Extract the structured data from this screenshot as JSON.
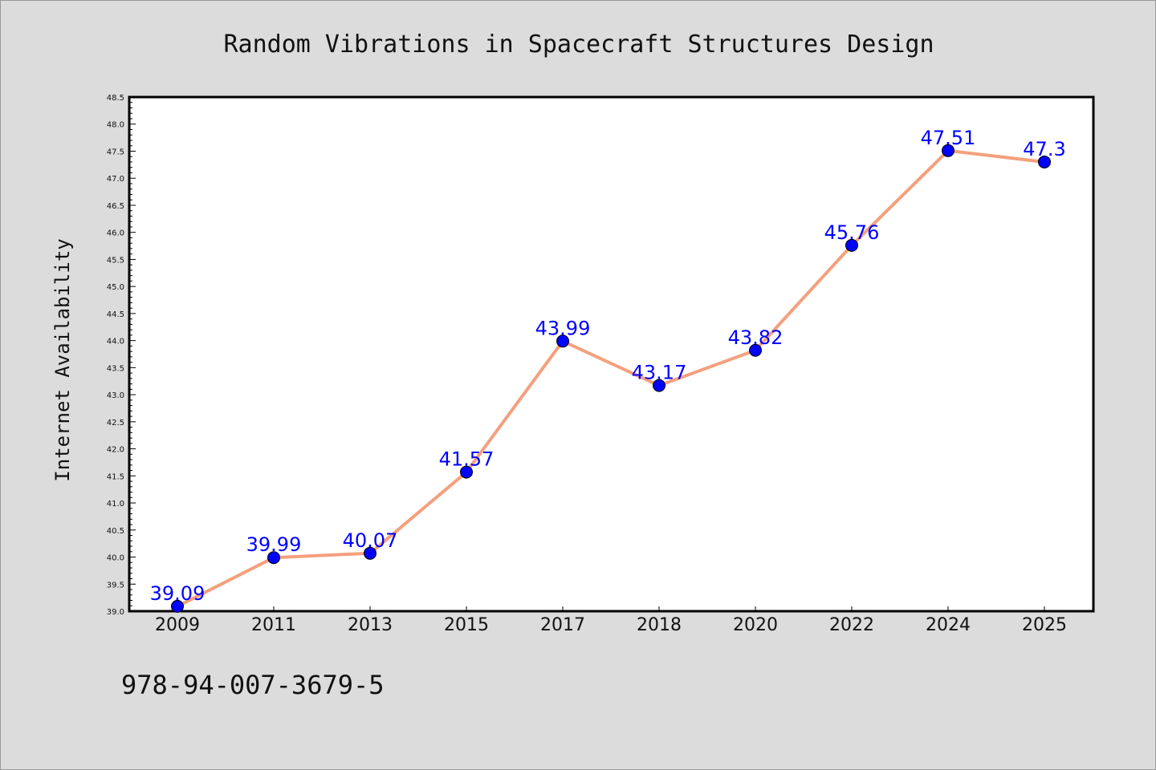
{
  "footer": "978-94-007-3679-5",
  "chart_data": {
    "type": "line",
    "title": "Random Vibrations in Spacecraft Structures Design",
    "xlabel": "",
    "ylabel": "Internet Availability",
    "categories": [
      "2009",
      "2011",
      "2013",
      "2015",
      "2017",
      "2018",
      "2020",
      "2022",
      "2024",
      "2025"
    ],
    "series": [
      {
        "values": [
          39.09,
          39.99,
          40.07,
          41.57,
          43.99,
          43.17,
          43.82,
          45.76,
          47.51,
          47.3
        ],
        "labels": [
          "39.09",
          "39.99",
          "40.07",
          "41.57",
          "43.99",
          "43.17",
          "43.82",
          "45.76",
          "47.51",
          "47.3"
        ]
      }
    ],
    "ylim": [
      39.0,
      48.5
    ],
    "yticks": [
      "39.0",
      "39.5",
      "40.0",
      "40.5",
      "41.0",
      "41.5",
      "42.0",
      "42.5",
      "43.0",
      "43.5",
      "44.0",
      "44.5",
      "45.0",
      "45.5",
      "46.0",
      "46.5",
      "47.0",
      "47.5",
      "48.0",
      "48.5"
    ],
    "grid": false,
    "line_color": "#f4a07e",
    "marker_color": "#0000ff",
    "label_color": "#0000ff"
  }
}
